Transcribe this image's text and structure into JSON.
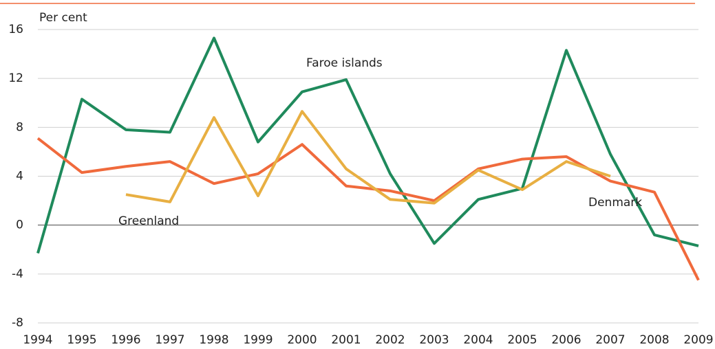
{
  "chart_data": {
    "type": "line",
    "y_label": "Per cent",
    "categories": [
      "1994",
      "1995",
      "1996",
      "1997",
      "1998",
      "1999",
      "2000",
      "2001",
      "2002",
      "2003",
      "2004",
      "2005",
      "2006",
      "2007",
      "2008",
      "2009"
    ],
    "series": [
      {
        "name": "Faroe islands",
        "color": "#1f8a5c",
        "values": [
          -2.3,
          10.3,
          7.8,
          7.6,
          15.3,
          6.8,
          10.9,
          11.9,
          4.2,
          -1.5,
          2.1,
          3.0,
          14.3,
          5.8,
          -0.8,
          -1.7
        ]
      },
      {
        "name": "Denmark",
        "color": "#f06a3c",
        "values": [
          7.1,
          4.3,
          4.8,
          5.2,
          3.4,
          4.2,
          6.6,
          3.2,
          2.8,
          2.0,
          4.6,
          5.4,
          5.6,
          3.6,
          2.7,
          -4.5
        ]
      },
      {
        "name": "Greenland",
        "color": "#e8af42",
        "values": [
          null,
          null,
          2.5,
          1.9,
          8.8,
          2.4,
          9.3,
          4.6,
          2.1,
          1.8,
          4.5,
          2.9,
          5.2,
          4.0,
          null,
          null
        ]
      }
    ],
    "ylim": [
      -8,
      16
    ],
    "yticks": [
      -8,
      -4,
      0,
      4,
      8,
      12,
      16
    ],
    "grid": true
  }
}
